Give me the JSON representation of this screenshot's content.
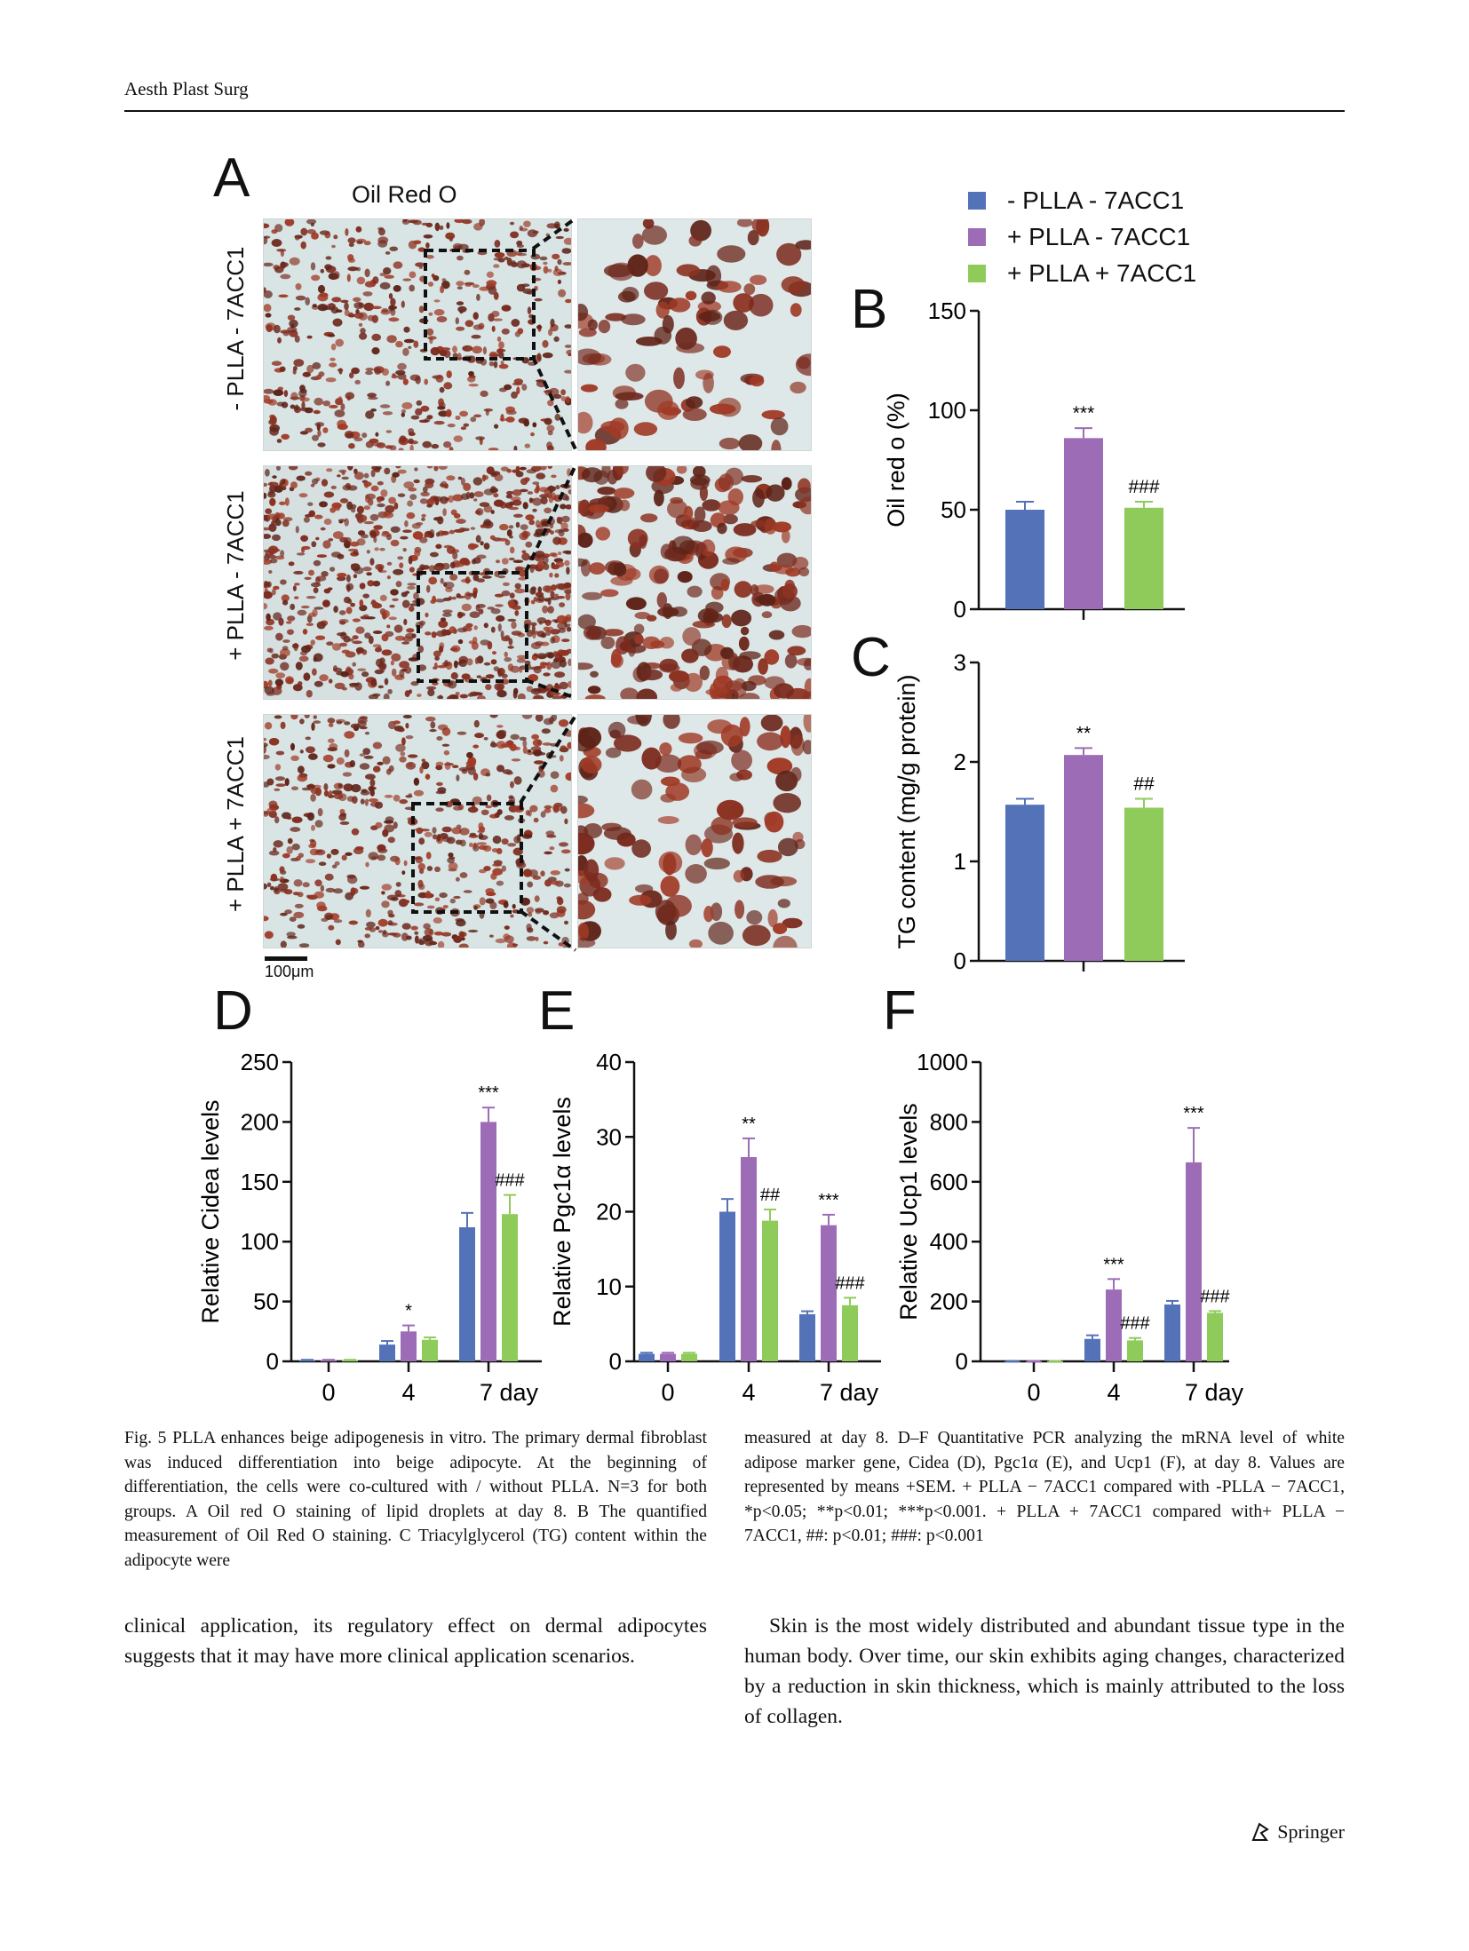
{
  "header": {
    "journal": "Aesth Plast Surg"
  },
  "legend": {
    "items": [
      {
        "label": "- PLLA - 7ACC1",
        "color": "#5472b8"
      },
      {
        "label": "+ PLLA - 7ACC1",
        "color": "#9c6cb6"
      },
      {
        "label": "+ PLLA + 7ACC1",
        "color": "#8fcb5a"
      }
    ]
  },
  "panelA": {
    "letter": "A",
    "title": "Oil Red O",
    "rows": [
      "- PLLA - 7ACC1",
      "+ PLLA - 7ACC1",
      "+ PLLA + 7ACC1"
    ],
    "scalebar": "100μm"
  },
  "letters": {
    "B": "B",
    "C": "C",
    "D": "D",
    "E": "E",
    "F": "F"
  },
  "chart_data": [
    {
      "panel": "B",
      "type": "bar",
      "ylabel": "Oil red o (%)",
      "ylim": [
        0,
        150
      ],
      "yticks": [
        0,
        50,
        100,
        150
      ],
      "series": [
        {
          "name": "- PLLA - 7ACC1",
          "values": [
            50
          ],
          "error": [
            4
          ]
        },
        {
          "name": "+ PLLA - 7ACC1",
          "values": [
            86
          ],
          "error": [
            5
          ],
          "annotation": "***"
        },
        {
          "name": "+ PLLA + 7ACC1",
          "values": [
            51
          ],
          "error": [
            3
          ],
          "annotation": "###"
        }
      ]
    },
    {
      "panel": "C",
      "type": "bar",
      "ylabel": "TG content (mg/g protein)",
      "ylim": [
        0,
        3
      ],
      "yticks": [
        0,
        1,
        2,
        3
      ],
      "series": [
        {
          "name": "- PLLA - 7ACC1",
          "values": [
            1.57
          ],
          "error": [
            0.06
          ]
        },
        {
          "name": "+ PLLA - 7ACC1",
          "values": [
            2.07
          ],
          "error": [
            0.07
          ],
          "annotation": "**"
        },
        {
          "name": "+ PLLA + 7ACC1",
          "values": [
            1.54
          ],
          "error": [
            0.09
          ],
          "annotation": "##"
        }
      ]
    },
    {
      "panel": "D",
      "type": "bar",
      "ylabel": "Relative Cidea levels",
      "ylim": [
        0,
        250
      ],
      "yticks": [
        0,
        50,
        100,
        150,
        200,
        250
      ],
      "categories": [
        "0",
        "4",
        "7 day"
      ],
      "series": [
        {
          "name": "- PLLA - 7ACC1",
          "values": [
            1,
            14,
            112
          ],
          "error": [
            0.3,
            3,
            12
          ]
        },
        {
          "name": "+ PLLA - 7ACC1",
          "values": [
            1,
            25,
            200
          ],
          "error": [
            0.3,
            5,
            12
          ],
          "annotations": [
            "",
            "*",
            "***"
          ]
        },
        {
          "name": "+ PLLA + 7ACC1",
          "values": [
            1,
            18,
            123
          ],
          "error": [
            0.3,
            2,
            16
          ],
          "annotations": [
            "",
            "",
            "###"
          ]
        }
      ]
    },
    {
      "panel": "E",
      "type": "bar",
      "ylabel": "Relative Pgc1α levels",
      "ylim": [
        0,
        40
      ],
      "yticks": [
        0,
        10,
        20,
        30,
        40
      ],
      "categories": [
        "0",
        "4",
        "7 day"
      ],
      "series": [
        {
          "name": "- PLLA - 7ACC1",
          "values": [
            1,
            20,
            6.3
          ],
          "error": [
            0.15,
            1.7,
            0.4
          ]
        },
        {
          "name": "+ PLLA - 7ACC1",
          "values": [
            1,
            27.3,
            18.2
          ],
          "error": [
            0.15,
            2.5,
            1.4
          ],
          "annotations": [
            "",
            "**",
            "***"
          ]
        },
        {
          "name": "+ PLLA + 7ACC1",
          "values": [
            1,
            18.8,
            7.5
          ],
          "error": [
            0.15,
            1.5,
            1.0
          ],
          "annotations": [
            "",
            "##",
            "###"
          ]
        }
      ]
    },
    {
      "panel": "F",
      "type": "bar",
      "ylabel": "Relative Ucp1 levels",
      "ylim": [
        0,
        1000
      ],
      "yticks": [
        0,
        200,
        400,
        600,
        800,
        1000
      ],
      "categories": [
        "0",
        "4",
        "7 day"
      ],
      "series": [
        {
          "name": "- PLLA - 7ACC1",
          "values": [
            1,
            75,
            190
          ],
          "error": [
            0.5,
            12,
            12
          ]
        },
        {
          "name": "+ PLLA - 7ACC1",
          "values": [
            1,
            240,
            665
          ],
          "error": [
            0.5,
            35,
            115
          ],
          "annotations": [
            "",
            "***",
            "***"
          ]
        },
        {
          "name": "+ PLLA + 7ACC1",
          "values": [
            1,
            70,
            162
          ],
          "error": [
            0.5,
            8,
            6
          ],
          "annotations": [
            "",
            "###",
            "###"
          ]
        }
      ]
    }
  ],
  "caption": {
    "left": "Fig. 5 PLLA enhances beige adipogenesis in vitro. The primary dermal fibroblast was induced differentiation into beige adipocyte. At the beginning of differentiation, the cells were co-cultured with / without PLLA. N=3 for both groups. A Oil red O staining of lipid droplets at day 8. B The quantified measurement of Oil Red O staining. C Triacylglycerol (TG) content within the adipocyte were",
    "right": "measured at day 8. D–F Quantitative PCR analyzing the mRNA level of white adipose marker gene, Cidea (D), Pgc1α (E), and Ucp1 (F), at day 8. Values are represented by means +SEM. + PLLA − 7ACC1 compared with -PLLA − 7ACC1, *p<0.05; **p<0.01; ***p<0.001. + PLLA + 7ACC1 compared with+ PLLA − 7ACC1, ##: p<0.01; ###: p<0.001"
  },
  "body": {
    "left": "clinical application, its regulatory effect on dermal adipocytes suggests that it may have more clinical application scenarios.",
    "right": "Skin is the most widely distributed and abundant tissue type in the human body. Over time, our skin exhibits aging changes, characterized by a reduction in skin thickness, which is mainly attributed to the loss of collagen."
  },
  "footer": {
    "publisher": "Springer"
  }
}
